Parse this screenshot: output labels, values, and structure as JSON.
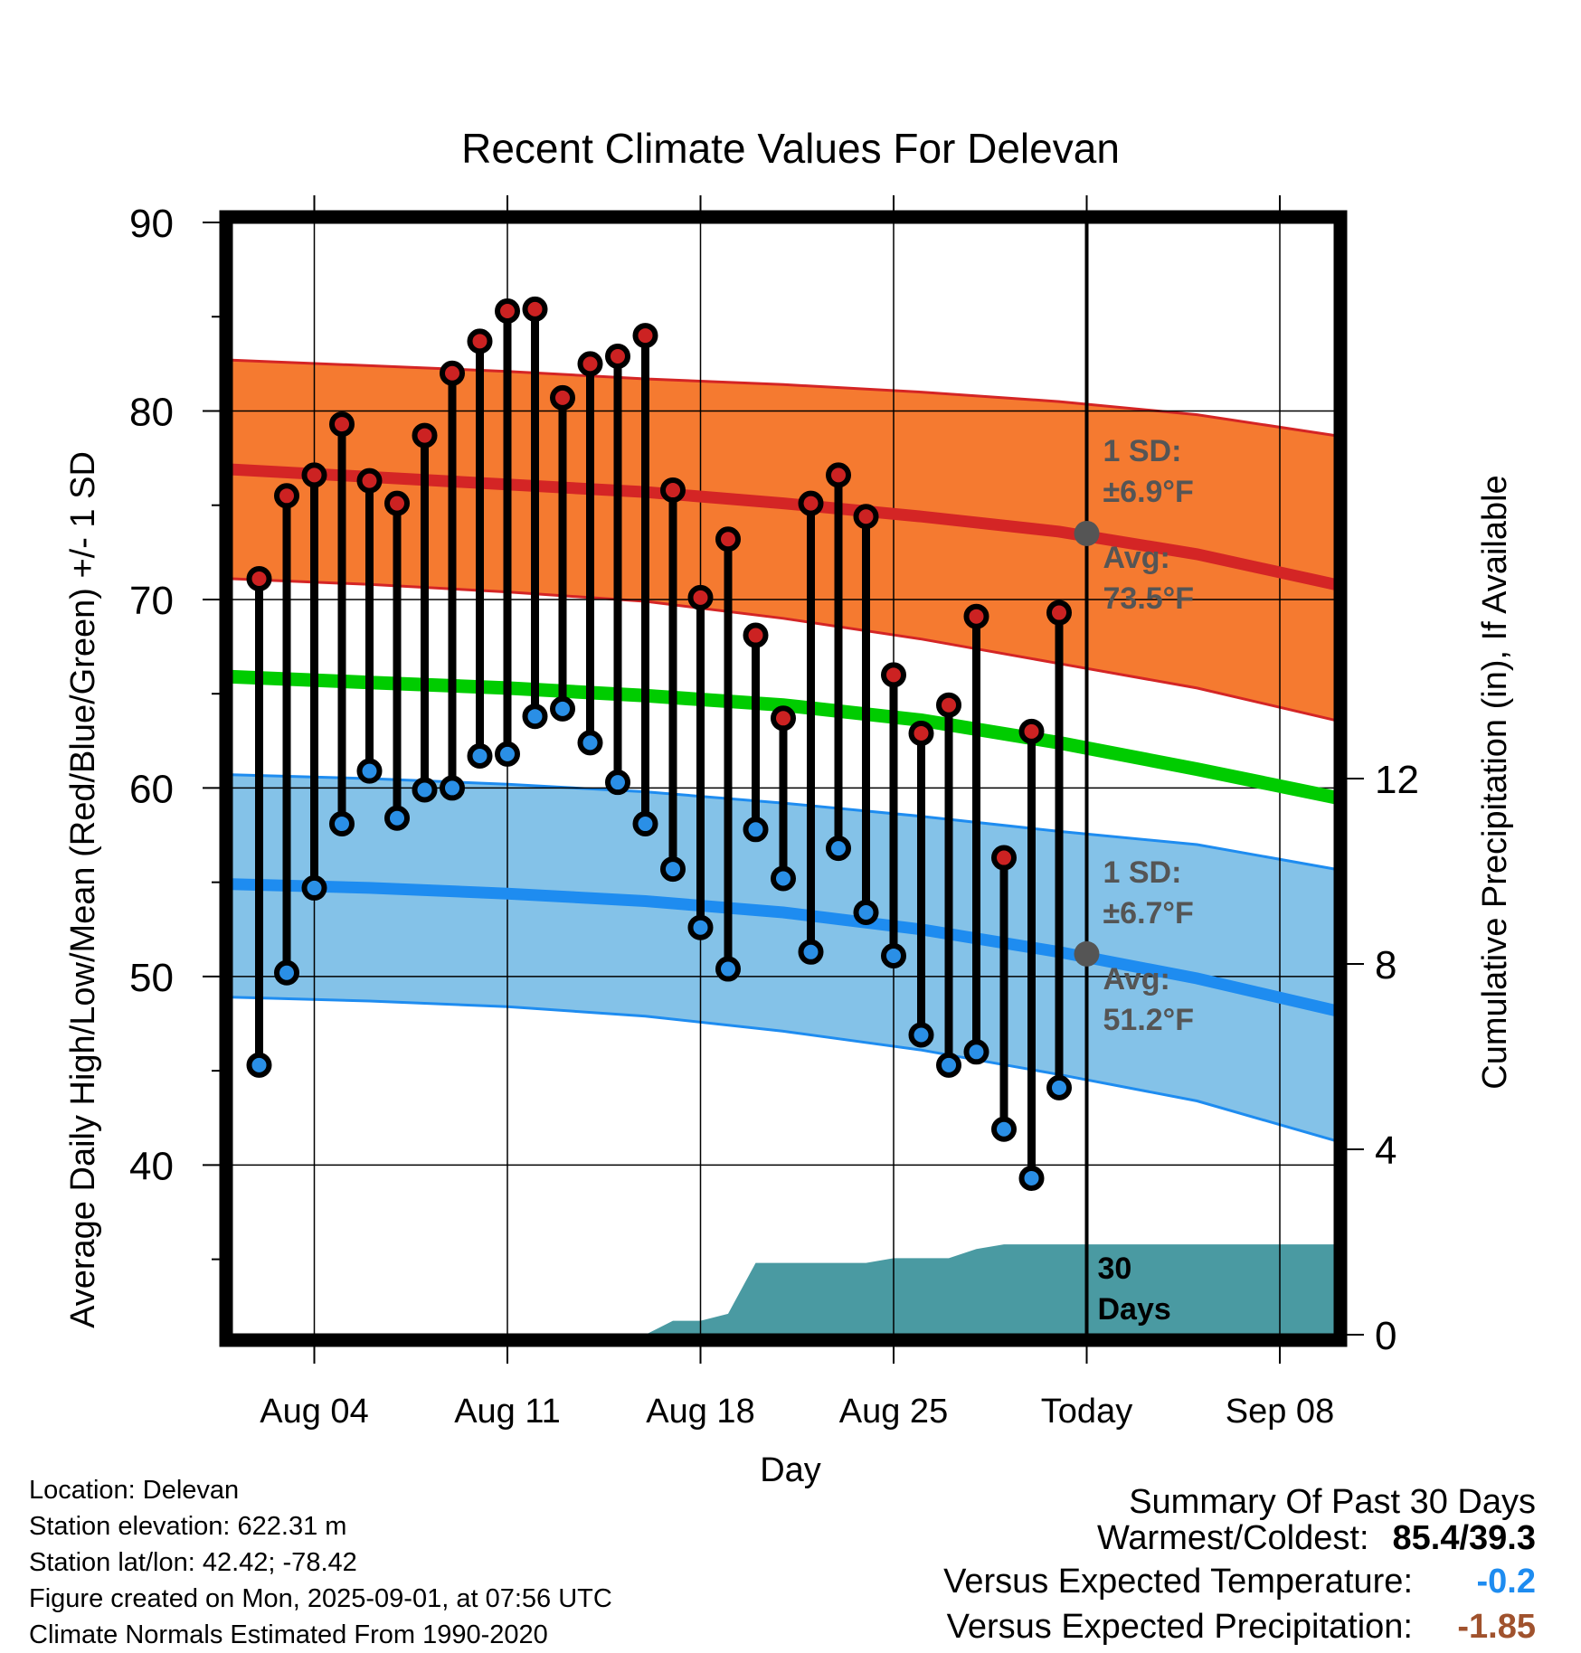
{
  "title": "Recent Climate Values For Delevan",
  "chart_data": {
    "type": "line",
    "title": "Recent Climate Values For Delevan",
    "xlabel": "Day",
    "ylabel_left": "Average Daily High/Low/Mean (Red/Blue/Green) +/- 1 SD",
    "ylabel_right": "Cumulative Precipitation (in), If Available",
    "ylim_left": [
      31,
      90
    ],
    "ylim_right": [
      0,
      24
    ],
    "yticks_left": [
      "90",
      "80",
      "70",
      "60",
      "50",
      "40"
    ],
    "yticks_right": [
      "12",
      "8",
      "4",
      "0"
    ],
    "xticks": [
      "Aug 04",
      "Aug 11",
      "Aug 18",
      "Aug 25",
      "Today",
      "Sep 08"
    ],
    "x_range": [
      "2025-08-01",
      "2025-09-10"
    ],
    "today": "2025-09-01",
    "observed": {
      "dates": [
        "2025-08-02",
        "2025-08-03",
        "2025-08-04",
        "2025-08-05",
        "2025-08-06",
        "2025-08-07",
        "2025-08-08",
        "2025-08-09",
        "2025-08-10",
        "2025-08-11",
        "2025-08-12",
        "2025-08-13",
        "2025-08-14",
        "2025-08-15",
        "2025-08-16",
        "2025-08-17",
        "2025-08-18",
        "2025-08-19",
        "2025-08-20",
        "2025-08-21",
        "2025-08-22",
        "2025-08-23",
        "2025-08-24",
        "2025-08-25",
        "2025-08-26",
        "2025-08-27",
        "2025-08-28",
        "2025-08-29",
        "2025-08-30",
        "2025-08-31"
      ],
      "high": [
        71.1,
        75.5,
        76.6,
        79.3,
        76.3,
        75.1,
        78.7,
        82.0,
        83.7,
        85.3,
        85.4,
        80.7,
        82.5,
        82.9,
        84.0,
        75.8,
        70.1,
        73.2,
        68.1,
        63.7,
        75.1,
        76.6,
        74.4,
        66.0,
        62.9,
        64.4,
        69.1,
        56.3,
        63.0,
        69.3
      ],
      "low": [
        45.3,
        50.2,
        54.7,
        58.1,
        60.9,
        58.4,
        59.9,
        60.0,
        61.7,
        61.8,
        63.8,
        64.2,
        62.4,
        60.3,
        58.1,
        55.7,
        52.6,
        50.4,
        57.8,
        55.2,
        51.3,
        56.8,
        53.4,
        51.1,
        46.9,
        45.3,
        46.0,
        41.9,
        39.3,
        44.1
      ]
    },
    "normals": {
      "dates": [
        "2025-08-01",
        "2025-08-06",
        "2025-08-11",
        "2025-08-16",
        "2025-08-21",
        "2025-08-26",
        "2025-08-31",
        "2025-09-05",
        "2025-09-10"
      ],
      "high_avg": [
        76.9,
        76.5,
        76.1,
        75.7,
        75.1,
        74.4,
        73.6,
        72.4,
        70.8
      ],
      "high_sd_upper": [
        82.7,
        82.4,
        82.1,
        81.7,
        81.4,
        81.0,
        80.5,
        79.8,
        78.7
      ],
      "high_sd_lower": [
        71.1,
        70.8,
        70.4,
        69.9,
        69.0,
        67.9,
        66.6,
        65.3,
        63.6
      ],
      "mean_avg": [
        65.9,
        65.6,
        65.3,
        64.9,
        64.4,
        63.6,
        62.4,
        61.0,
        59.5
      ],
      "low_avg": [
        54.9,
        54.7,
        54.4,
        54.0,
        53.4,
        52.5,
        51.3,
        49.9,
        48.2
      ],
      "low_sd_upper": [
        60.7,
        60.5,
        60.2,
        59.8,
        59.2,
        58.5,
        57.7,
        57.0,
        55.7
      ],
      "low_sd_lower": [
        48.9,
        48.7,
        48.4,
        47.9,
        47.1,
        46.1,
        44.8,
        43.4,
        41.3
      ]
    },
    "precip": {
      "dates": [
        "2025-08-16",
        "2025-08-17",
        "2025-08-18",
        "2025-08-19",
        "2025-08-20",
        "2025-08-21",
        "2025-08-22",
        "2025-08-23",
        "2025-08-24",
        "2025-08-25",
        "2025-08-26",
        "2025-08-27",
        "2025-08-28",
        "2025-08-29",
        "2025-08-30",
        "2025-08-31",
        "2025-09-01",
        "2025-09-10"
      ],
      "cumulative": [
        0,
        0.3,
        0.3,
        0.45,
        1.55,
        1.55,
        1.55,
        1.55,
        1.55,
        1.65,
        1.65,
        1.65,
        1.85,
        1.95,
        1.95,
        1.95,
        1.95,
        1.95
      ],
      "label": [
        "30",
        "Days"
      ]
    },
    "annotations": {
      "high_sd": [
        "1 SD:",
        "±6.9°F"
      ],
      "high_avg": [
        "Avg:",
        "73.5°F"
      ],
      "low_sd": [
        "1 SD:",
        "±6.7°F"
      ],
      "low_avg": [
        "Avg:",
        "51.2°F"
      ],
      "today_high_avg": 73.5,
      "today_low_avg": 51.2
    },
    "colors": {
      "high_band": "#f57a30",
      "high_line": "#d42525",
      "low_band": "#84c2e8",
      "low_line": "#1e8cf0",
      "mean_line": "#00cc00",
      "precip_fill": "#4a9aa2",
      "high_marker": "#cc2222",
      "low_marker": "#2a8fe6",
      "annotation_text": "#555555",
      "today_marker": "#555555"
    }
  },
  "info": {
    "location": "Location: Delevan",
    "elevation": "Station elevation: 622.31 m",
    "latlon": "Station lat/lon: 42.42; -78.42",
    "created": "Figure created on Mon, 2025-09-01, at 07:56 UTC",
    "normals": "Climate Normals Estimated From 1990-2020"
  },
  "summary": {
    "title": "Summary Of Past 30 Days",
    "warmest_coldest_label": "Warmest/Coldest:",
    "warmest_coldest_value": "85.4/39.3",
    "temp_label": "Versus Expected Temperature:",
    "temp_value": "-0.2",
    "temp_color": "#1e8cf0",
    "precip_label": "Versus Expected Precipitation:",
    "precip_value": "-1.85",
    "precip_color": "#a0522d"
  }
}
